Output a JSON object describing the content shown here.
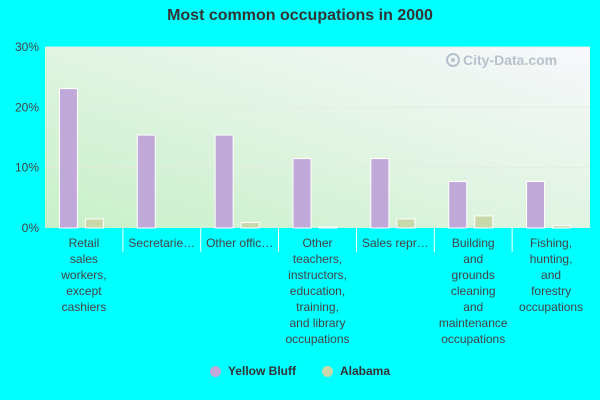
{
  "chart_data": {
    "type": "bar",
    "title": "Most common occupations in 2000",
    "categories": [
      "Retail sales workers, except cashiers",
      "Secretaries and administrative assistants",
      "Other office and administrative support workers",
      "Other teachers, instructors, education, training, and library occupations",
      "Sales representatives",
      "Building and grounds cleaning and maintenance occupations",
      "Fishing, hunting, and forestry occupations"
    ],
    "category_labels": [
      [
        "Retail",
        "sales",
        "workers,",
        "except",
        "cashiers"
      ],
      [
        "Secretarie…"
      ],
      [
        "Other offic…"
      ],
      [
        "Other",
        "teachers,",
        "instructors,",
        "education,",
        "training,",
        "and library",
        "occupations"
      ],
      [
        "Sales repr…"
      ],
      [
        "Building",
        "and",
        "grounds",
        "cleaning",
        "and",
        "maintenance",
        "occupations"
      ],
      [
        "Fishing,",
        "hunting,",
        "and",
        "forestry",
        "occupations"
      ]
    ],
    "series": [
      {
        "name": "Yellow Bluff",
        "color": "#c0a8d8",
        "values": [
          23.1,
          15.4,
          15.4,
          11.5,
          11.5,
          7.7,
          7.7
        ]
      },
      {
        "name": "Alabama",
        "color": "#c8d8a8",
        "values": [
          1.5,
          0,
          0.9,
          0.2,
          1.5,
          2.0,
          0.4
        ]
      }
    ],
    "ylim": [
      0,
      30
    ],
    "yticks": [
      0,
      10,
      20,
      30
    ],
    "ytick_labels": [
      "0%",
      "10%",
      "20%",
      "30%"
    ],
    "xlabel": "",
    "ylabel": "",
    "legend_position": "bottom",
    "grid": true
  },
  "watermark": {
    "text": "City-Data.com",
    "icon": "magnifier-icon"
  }
}
